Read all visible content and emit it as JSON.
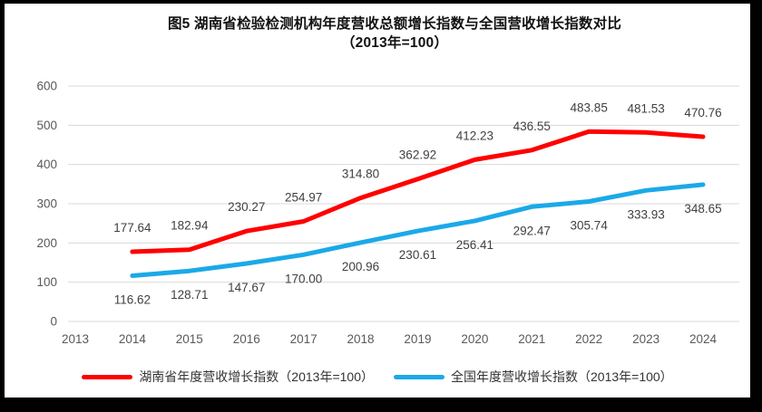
{
  "title": {
    "line1": "图5 湖南省检验检测机构年度营收总额增长指数与全国营收增长指数对比",
    "line2": "（2013年=100）"
  },
  "chart_data": {
    "type": "line",
    "categories": [
      "2013",
      "2014",
      "2015",
      "2016",
      "2017",
      "2018",
      "2019",
      "2020",
      "2021",
      "2022",
      "2023",
      "2024"
    ],
    "series": [
      {
        "name": "湖南省年度营收增长指数（2013年=100）",
        "color": "#FF0000",
        "label_position": "above",
        "values": [
          null,
          177.64,
          182.94,
          230.27,
          254.97,
          314.8,
          362.92,
          412.23,
          436.55,
          483.85,
          481.53,
          470.76
        ],
        "labels": [
          null,
          "177.64",
          "182.94",
          "230.27",
          "254.97",
          "314.80",
          "362.92",
          "412.23",
          "436.55",
          "483.85",
          "481.53",
          "470.76"
        ]
      },
      {
        "name": "全国年度营收增长指数（2013年=100）",
        "color": "#1BA9E8",
        "label_position": "below",
        "values": [
          null,
          116.62,
          128.71,
          147.67,
          170.0,
          200.96,
          230.61,
          256.41,
          292.47,
          305.74,
          333.93,
          348.65
        ],
        "labels": [
          null,
          "116.62",
          "128.71",
          "147.67",
          "170.00",
          "200.96",
          "230.61",
          "256.41",
          "292.47",
          "305.74",
          "333.93",
          "348.65"
        ]
      }
    ],
    "ylim": [
      0,
      600
    ],
    "ytick_step": 100,
    "yticks": [
      "0",
      "100",
      "200",
      "300",
      "400",
      "500",
      "600"
    ],
    "grid": true,
    "legend_position": "bottom",
    "styles": {
      "grid_color": "#D9D9D9",
      "tick_label_color": "#595959",
      "data_label_color": "#404040"
    }
  }
}
